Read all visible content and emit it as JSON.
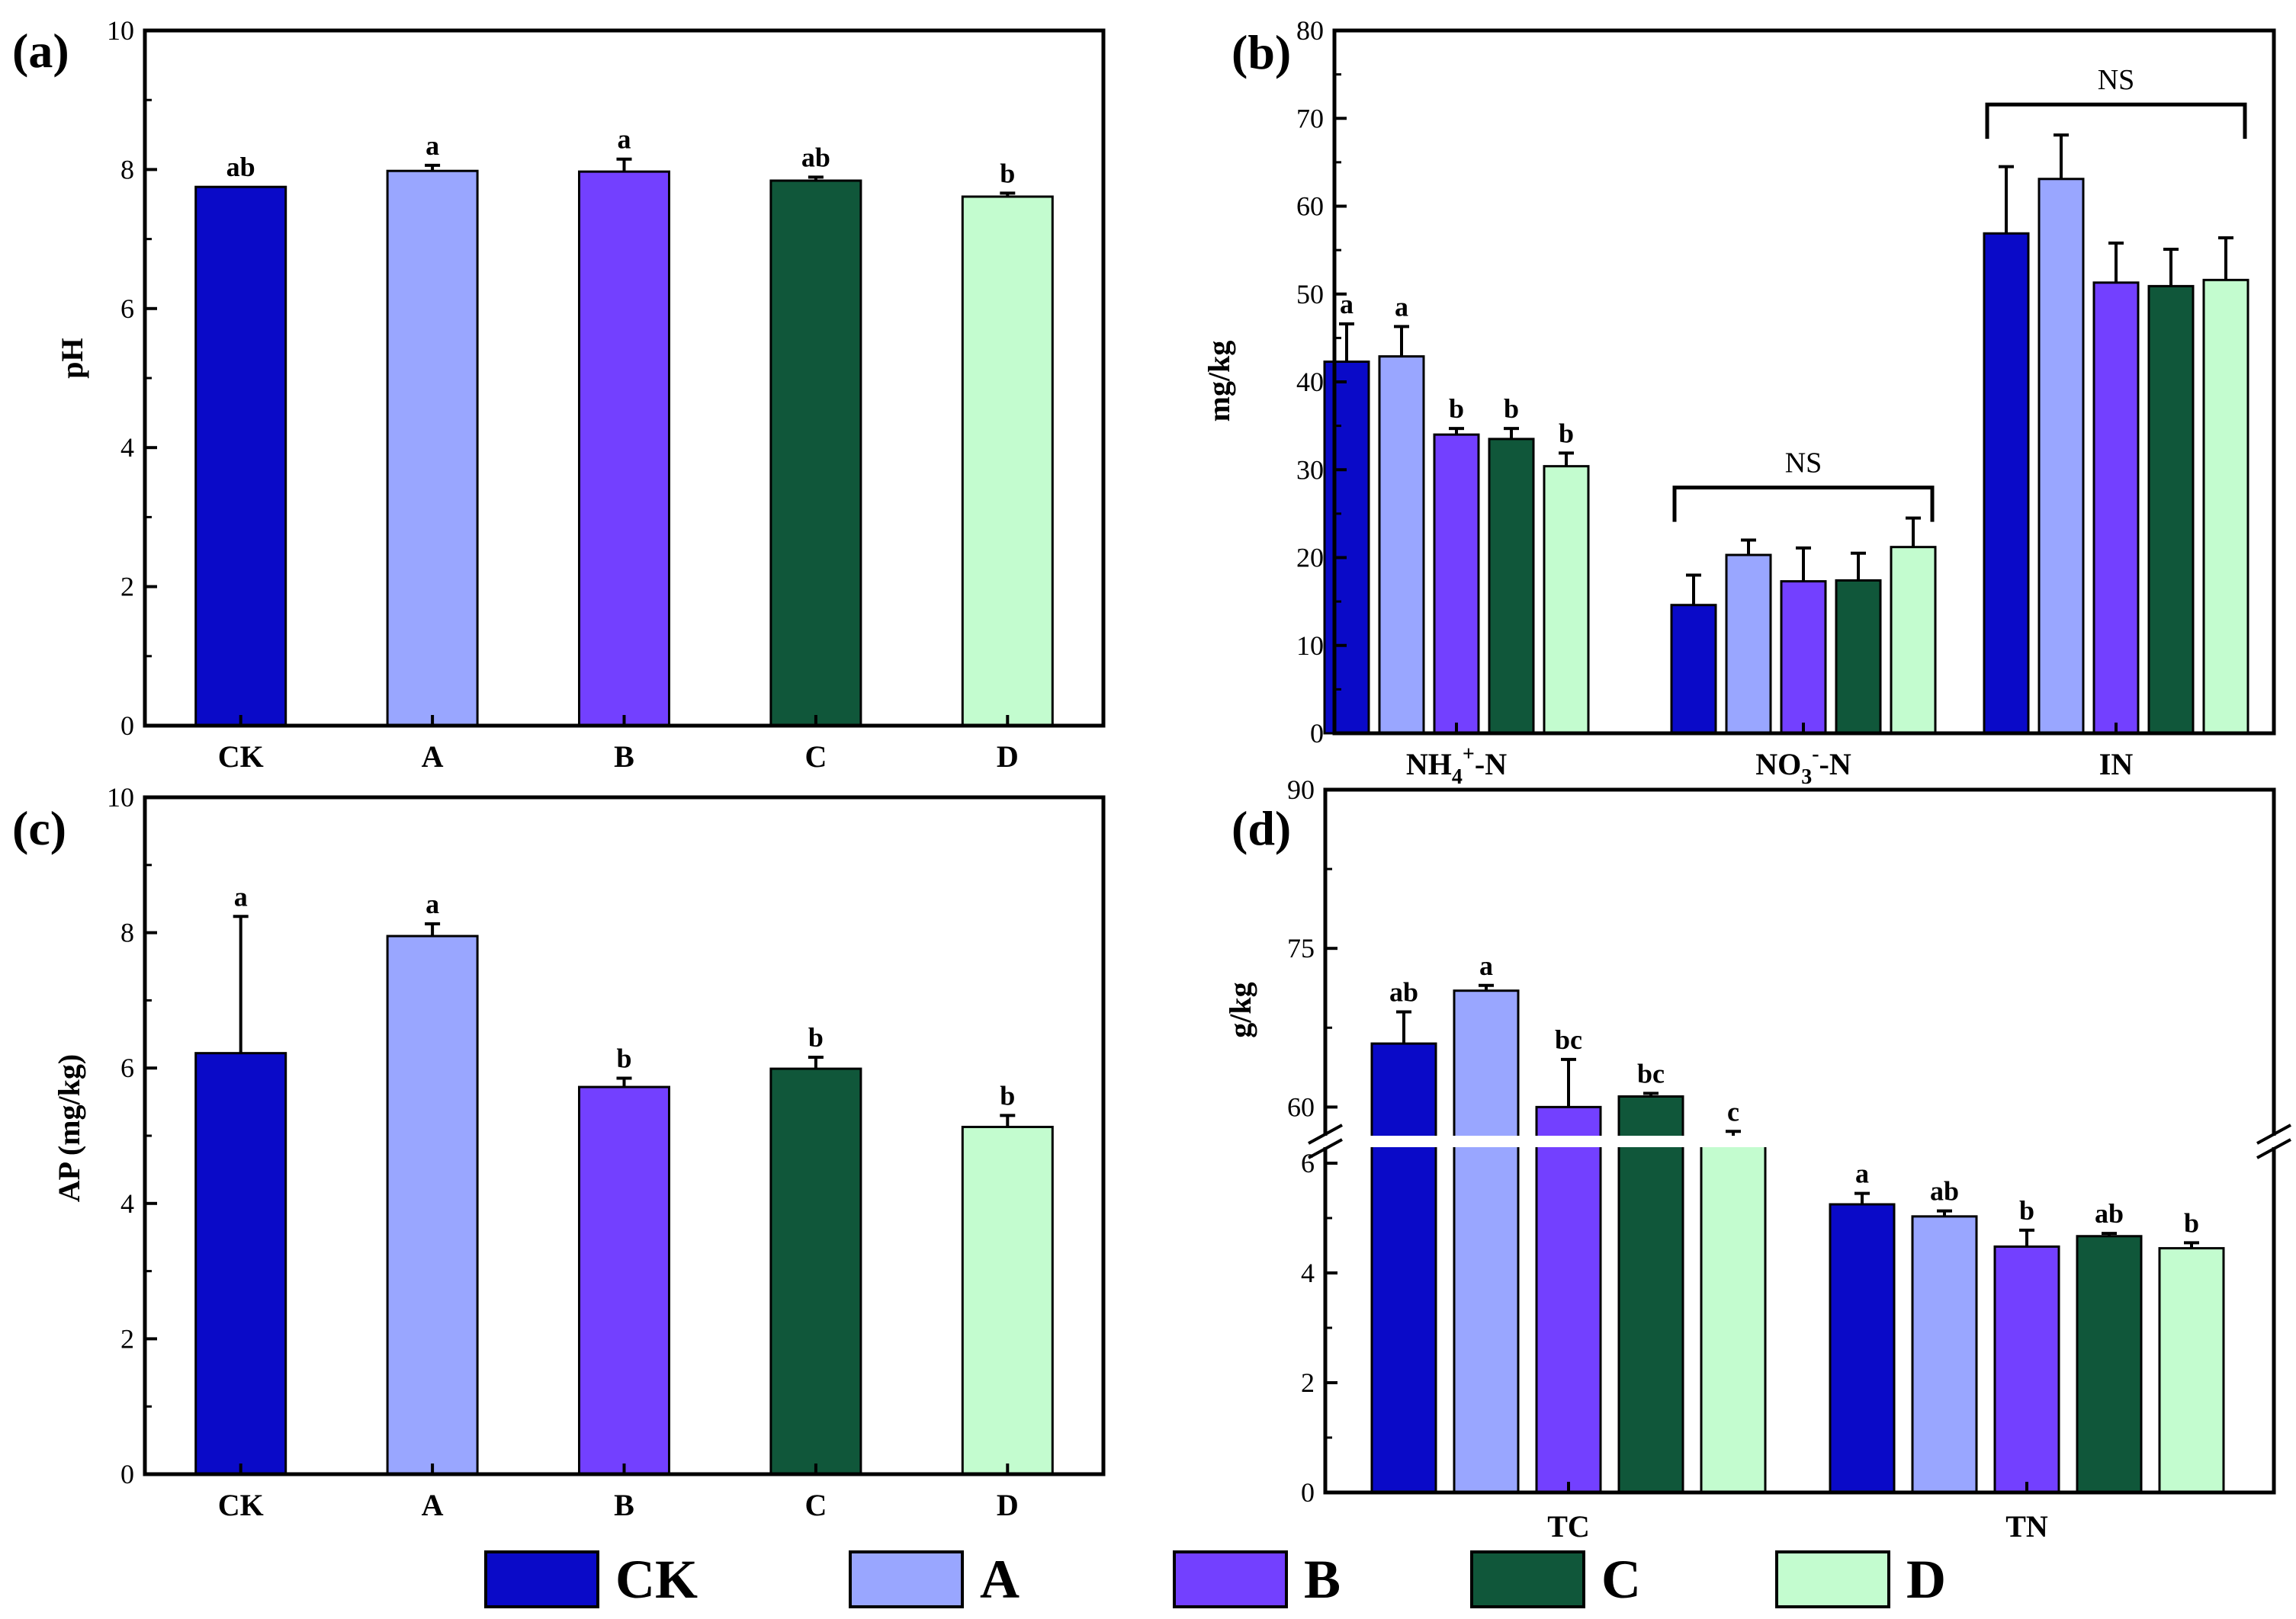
{
  "colors": {
    "CK": "#0a0ac8",
    "A": "#99a6ff",
    "B": "#7340ff",
    "C": "#10573a",
    "D": "#c3fccf"
  },
  "legend": [
    {
      "name": "CK",
      "color": "#0a0ac8"
    },
    {
      "name": "A",
      "color": "#99a6ff"
    },
    {
      "name": "B",
      "color": "#7340ff"
    },
    {
      "name": "C",
      "color": "#10573a"
    },
    {
      "name": "D",
      "color": "#c3fccf"
    }
  ],
  "chart_data": [
    {
      "type": "bar",
      "panel": "(a)",
      "title": "",
      "ylabel": "pH",
      "xlabel": "",
      "ylim": [
        0,
        10
      ],
      "yticks": [
        "0",
        "2",
        "4",
        "6",
        "8",
        "10"
      ],
      "categories": [
        "CK",
        "A",
        "B",
        "C",
        "D"
      ],
      "values": [
        7.75,
        7.98,
        7.97,
        7.84,
        7.61
      ],
      "errors": [
        0.0,
        0.08,
        0.18,
        0.05,
        0.05
      ],
      "letters": [
        "ab",
        "a",
        "a",
        "ab",
        "b"
      ]
    },
    {
      "type": "bar",
      "panel": "(b)",
      "title": "",
      "ylabel": "mg/kg",
      "xlabel": "",
      "ylim": [
        0,
        80
      ],
      "yticks": [
        "0",
        "10",
        "20",
        "30",
        "40",
        "50",
        "60",
        "70",
        "80"
      ],
      "group_labels": [
        {
          "main": "NH",
          "sub": "4",
          "sup": "+",
          "suffix": "-N"
        },
        {
          "main": "NO",
          "sub": "3",
          "sup": "-",
          "suffix": "-N"
        },
        {
          "main": "IN",
          "sub": "",
          "sup": "",
          "suffix": ""
        }
      ],
      "series": [
        {
          "name": "CK",
          "values": [
            42.3,
            14.6,
            56.9
          ],
          "errors": [
            4.3,
            3.4,
            7.6
          ]
        },
        {
          "name": "A",
          "values": [
            42.9,
            20.3,
            63.1
          ],
          "errors": [
            3.4,
            1.7,
            5.0
          ]
        },
        {
          "name": "B",
          "values": [
            34.0,
            17.3,
            51.3
          ],
          "errors": [
            0.7,
            3.8,
            4.5
          ]
        },
        {
          "name": "C",
          "values": [
            33.5,
            17.4,
            50.9
          ],
          "errors": [
            1.2,
            3.1,
            4.2
          ]
        },
        {
          "name": "D",
          "values": [
            30.4,
            21.2,
            51.6
          ],
          "errors": [
            1.5,
            3.3,
            4.8
          ]
        }
      ],
      "letters": [
        [
          "a",
          "a",
          "b",
          "b",
          "b"
        ],
        [
          "",
          "",
          "",
          "",
          ""
        ],
        [
          "",
          "",
          "",
          "",
          ""
        ]
      ],
      "group_annotations": [
        "",
        "NS",
        "NS"
      ]
    },
    {
      "type": "bar",
      "panel": "(c)",
      "title": "",
      "ylabel": "AP (mg/kg)",
      "xlabel": "",
      "ylim": [
        0,
        10
      ],
      "yticks": [
        "0",
        "2",
        "4",
        "6",
        "8",
        "10"
      ],
      "categories": [
        "CK",
        "A",
        "B",
        "C",
        "D"
      ],
      "values": [
        6.22,
        7.95,
        5.72,
        5.99,
        5.13
      ],
      "errors": [
        2.02,
        0.18,
        0.13,
        0.17,
        0.17
      ],
      "letters": [
        "a",
        "a",
        "b",
        "b",
        "b"
      ]
    },
    {
      "type": "bar",
      "panel": "(d)",
      "title": "",
      "ylabel": "g/kg",
      "xlabel": "",
      "ylim": [
        0,
        90
      ],
      "axis_break": [
        6.5,
        57
      ],
      "yticks": [
        "0",
        "2",
        "4",
        "6",
        "60",
        "75",
        "90"
      ],
      "group_labels": [
        "TC",
        "TN"
      ],
      "series": [
        {
          "name": "CK",
          "values": [
            66.0,
            5.25
          ],
          "errors": [
            3.0,
            0.2
          ]
        },
        {
          "name": "A",
          "values": [
            71.0,
            5.03
          ],
          "errors": [
            0.5,
            0.1
          ]
        },
        {
          "name": "B",
          "values": [
            60.0,
            4.48
          ],
          "errors": [
            4.5,
            0.3
          ]
        },
        {
          "name": "C",
          "values": [
            61.0,
            4.67
          ],
          "errors": [
            0.3,
            0.05
          ]
        },
        {
          "name": "D",
          "values": [
            56.5,
            4.45
          ],
          "errors": [
            1.2,
            0.1
          ]
        }
      ],
      "letters": [
        [
          "ab",
          "a",
          "bc",
          "bc",
          "c"
        ],
        [
          "a",
          "ab",
          "b",
          "ab",
          "b"
        ]
      ]
    }
  ]
}
